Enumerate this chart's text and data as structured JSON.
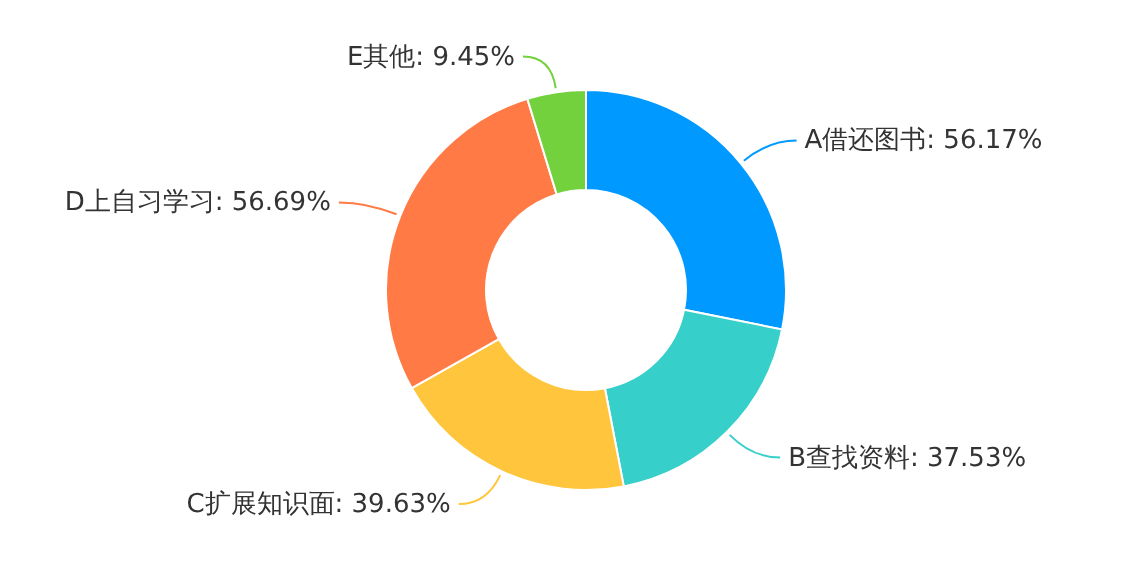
{
  "chart_data": {
    "type": "donut",
    "categories": [
      "A借还图书",
      "B查找资料",
      "C扩展知识面",
      "D上自习学习",
      "E其他"
    ],
    "values": [
      56.17,
      37.53,
      39.63,
      56.69,
      9.45
    ],
    "value_labels": [
      "56.17%",
      "37.53%",
      "39.63%",
      "56.69%",
      "9.45%"
    ],
    "colors": [
      "#0099ff",
      "#36cfc9",
      "#ffc53d",
      "#ff7a45",
      "#73d13d"
    ],
    "legend": false
  }
}
